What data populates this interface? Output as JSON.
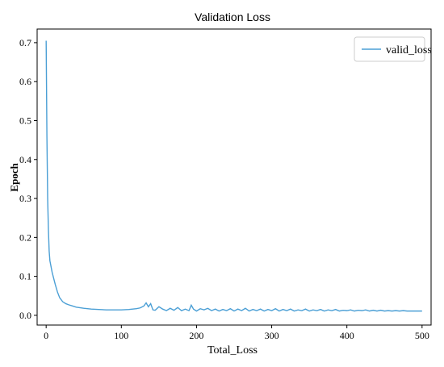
{
  "chart_data": {
    "type": "line",
    "title": "Validation Loss",
    "xlabel": "Total_Loss",
    "ylabel": "Epoch",
    "xlim": [
      -12,
      512
    ],
    "ylim": [
      -0.025,
      0.735
    ],
    "xticks": [
      0,
      100,
      200,
      300,
      400,
      500
    ],
    "yticks": [
      0.0,
      0.1,
      0.2,
      0.3,
      0.4,
      0.5,
      0.6,
      0.7
    ],
    "ytick_labels": [
      "0.0",
      "0.1",
      "0.2",
      "0.3",
      "0.4",
      "0.5",
      "0.6",
      "0.7"
    ],
    "grid": false,
    "legend_position": "top-right",
    "line_color": "#4b9fd5",
    "series": [
      {
        "name": "valid_loss",
        "x": [
          0,
          1,
          2,
          3,
          4,
          5,
          6,
          7,
          8,
          10,
          12,
          15,
          18,
          22,
          26,
          30,
          35,
          40,
          50,
          60,
          70,
          80,
          90,
          100,
          110,
          120,
          125,
          130,
          133,
          136,
          139,
          142,
          145,
          150,
          155,
          160,
          165,
          170,
          175,
          180,
          185,
          190,
          193,
          196,
          200,
          205,
          210,
          215,
          220,
          225,
          230,
          235,
          240,
          245,
          250,
          255,
          260,
          265,
          270,
          275,
          280,
          285,
          290,
          295,
          300,
          305,
          310,
          315,
          320,
          325,
          330,
          335,
          340,
          345,
          350,
          355,
          360,
          365,
          370,
          375,
          380,
          385,
          390,
          395,
          400,
          405,
          410,
          415,
          420,
          425,
          430,
          435,
          440,
          445,
          450,
          455,
          460,
          465,
          470,
          475,
          480,
          485,
          490,
          495,
          500
        ],
        "y": [
          0.705,
          0.46,
          0.3,
          0.22,
          0.165,
          0.14,
          0.13,
          0.12,
          0.11,
          0.095,
          0.08,
          0.06,
          0.045,
          0.035,
          0.03,
          0.027,
          0.024,
          0.021,
          0.018,
          0.016,
          0.015,
          0.014,
          0.014,
          0.014,
          0.015,
          0.017,
          0.019,
          0.024,
          0.032,
          0.022,
          0.03,
          0.014,
          0.013,
          0.022,
          0.016,
          0.012,
          0.018,
          0.013,
          0.02,
          0.012,
          0.016,
          0.012,
          0.026,
          0.016,
          0.011,
          0.017,
          0.014,
          0.018,
          0.012,
          0.016,
          0.011,
          0.015,
          0.012,
          0.017,
          0.011,
          0.016,
          0.012,
          0.018,
          0.011,
          0.015,
          0.012,
          0.016,
          0.011,
          0.015,
          0.012,
          0.017,
          0.011,
          0.015,
          0.012,
          0.016,
          0.011,
          0.014,
          0.012,
          0.016,
          0.011,
          0.014,
          0.012,
          0.015,
          0.011,
          0.014,
          0.012,
          0.015,
          0.011,
          0.013,
          0.012,
          0.014,
          0.011,
          0.013,
          0.012,
          0.014,
          0.011,
          0.013,
          0.011,
          0.013,
          0.011,
          0.012,
          0.011,
          0.012,
          0.011,
          0.012,
          0.011,
          0.011,
          0.011,
          0.011,
          0.011
        ]
      }
    ]
  }
}
